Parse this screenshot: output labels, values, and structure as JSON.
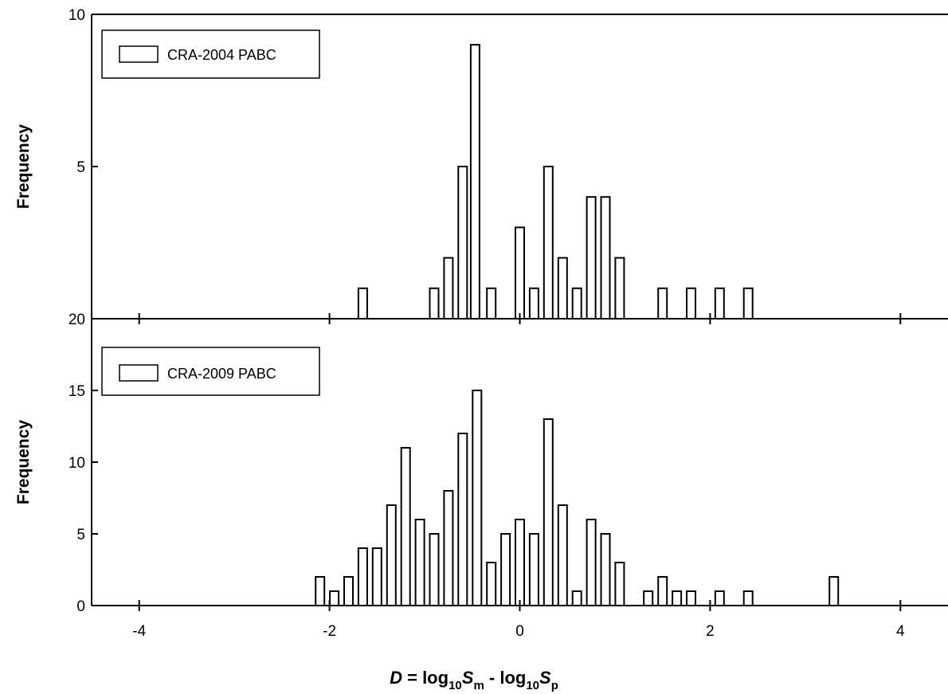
{
  "chart_data": [
    {
      "type": "bar",
      "legend": "CRA-2004 PABC",
      "legend_position": "top-left",
      "ylabel": "Frequency",
      "xlim": [
        -4.5,
        4.5
      ],
      "ylim": [
        0,
        10
      ],
      "yticks": [
        {
          "value": 10,
          "label": "10"
        },
        {
          "value": 5,
          "label": "5"
        },
        {
          "value": 0,
          "label": "20"
        }
      ],
      "x": [
        -1.65,
        -0.9,
        -0.75,
        -0.6,
        -0.47,
        -0.3,
        0.0,
        0.15,
        0.3,
        0.45,
        0.6,
        0.75,
        0.9,
        1.05,
        1.5,
        1.8,
        2.1,
        2.4
      ],
      "values": [
        1,
        1,
        2,
        5,
        9,
        1,
        3,
        1,
        5,
        2,
        1,
        4,
        4,
        2,
        1,
        1,
        1,
        1
      ]
    },
    {
      "type": "bar",
      "legend": "CRA-2009 PABC",
      "legend_position": "top-left",
      "ylabel": "Frequency",
      "xlim": [
        -4.5,
        4.5
      ],
      "ylim": [
        0,
        20
      ],
      "yticks": [
        {
          "value": 0,
          "label": "0"
        },
        {
          "value": 5,
          "label": "5"
        },
        {
          "value": 10,
          "label": "10"
        },
        {
          "value": 15,
          "label": "15"
        }
      ],
      "x": [
        -2.1,
        -1.95,
        -1.8,
        -1.65,
        -1.5,
        -1.35,
        -1.2,
        -1.05,
        -0.9,
        -0.75,
        -0.6,
        -0.45,
        -0.3,
        -0.15,
        0.0,
        0.15,
        0.3,
        0.45,
        0.6,
        0.75,
        0.9,
        1.05,
        1.35,
        1.5,
        1.65,
        1.8,
        2.1,
        2.4,
        3.3
      ],
      "values": [
        2,
        1,
        2,
        4,
        4,
        7,
        11,
        6,
        5,
        8,
        12,
        15,
        3,
        5,
        6,
        5,
        13,
        7,
        1,
        6,
        5,
        3,
        1,
        2,
        1,
        1,
        1,
        1,
        2
      ]
    }
  ],
  "xaxis": {
    "ticks": [
      {
        "value": -4,
        "label": "-4"
      },
      {
        "value": -2,
        "label": "-2"
      },
      {
        "value": 0,
        "label": "0"
      },
      {
        "value": 2,
        "label": "2"
      },
      {
        "value": 4,
        "label": "4"
      }
    ],
    "label": {
      "var": "D",
      "eq": " = log",
      "sub1": "10",
      "s1": "S",
      "sub_m": "m",
      "minus": " - log",
      "sub2": "10",
      "s2": "S",
      "sub_p": "p"
    }
  }
}
